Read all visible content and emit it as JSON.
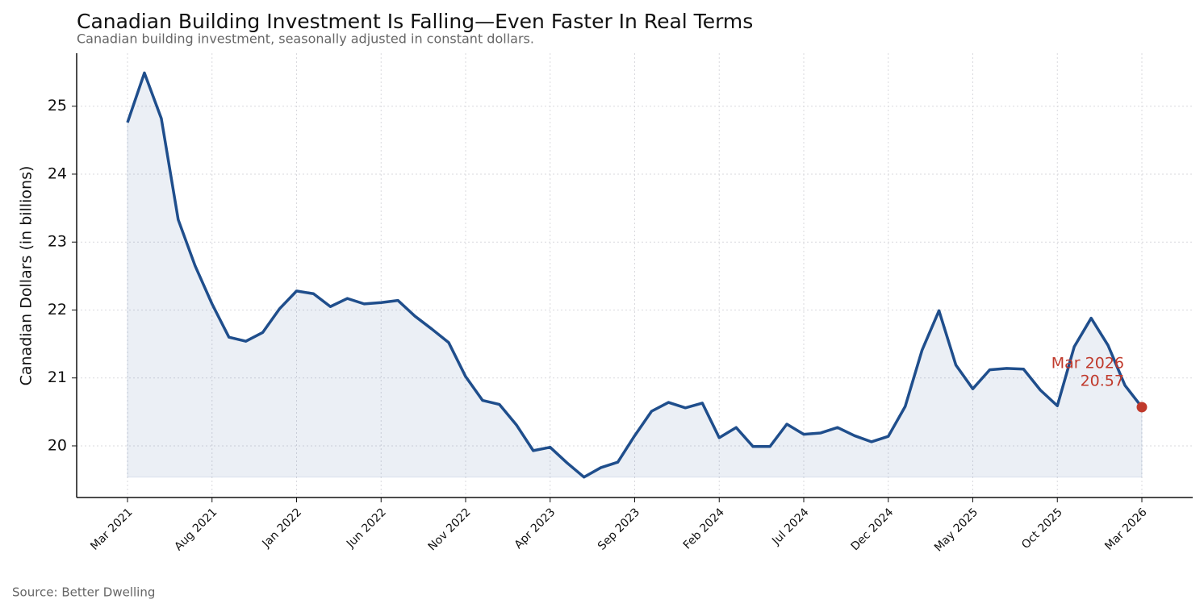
{
  "chart_data": {
    "type": "line",
    "title": "Canadian Building Investment Is Falling—Even Faster In Real Terms",
    "subtitle": "Canadian building investment, seasonally adjusted in constant dollars.",
    "y_label": "Canadian Dollars (in billions)",
    "source": "Source: Better Dwelling",
    "categories": [
      "Mar 2021",
      null,
      null,
      null,
      null,
      "Aug 2021",
      null,
      null,
      null,
      null,
      "Jan 2022",
      null,
      null,
      null,
      null,
      "Jun 2022",
      null,
      null,
      null,
      null,
      "Nov 2022",
      null,
      null,
      null,
      null,
      "Apr 2023",
      null,
      null,
      null,
      null,
      "Sep 2023",
      null,
      null,
      null,
      null,
      "Feb 2024",
      null,
      null,
      null,
      null,
      "Jul 2024",
      null,
      null,
      null,
      null,
      "Dec 2024",
      null,
      null,
      null,
      null,
      "May 2025",
      null,
      null,
      null,
      null,
      "Oct 2025",
      null,
      null,
      null,
      null,
      "Mar 2026"
    ],
    "series": [
      {
        "name": "Building investment",
        "color": "#1f4e8c",
        "values": [
          24.76,
          25.49,
          24.82,
          23.33,
          22.65,
          22.09,
          21.6,
          21.54,
          21.67,
          22.02,
          22.28,
          22.24,
          22.05,
          22.17,
          22.09,
          22.11,
          22.14,
          21.91,
          21.72,
          21.52,
          21.02,
          20.67,
          20.61,
          20.31,
          19.93,
          19.98,
          19.75,
          19.54,
          19.68,
          19.76,
          20.15,
          20.51,
          20.64,
          20.56,
          20.63,
          20.12,
          20.27,
          19.99,
          19.99,
          20.32,
          20.17,
          20.19,
          20.27,
          20.15,
          20.06,
          20.14,
          20.58,
          21.41,
          21.99,
          21.19,
          20.84,
          21.12,
          21.14,
          21.13,
          20.82,
          20.59,
          21.46,
          21.88,
          21.48,
          20.89,
          20.57
        ]
      }
    ],
    "highlight_color": "#c0392b",
    "ylim": [
      19.24,
      25.78
    ],
    "yticks": [
      20,
      21,
      22,
      23,
      24,
      25
    ],
    "grid": true
  }
}
